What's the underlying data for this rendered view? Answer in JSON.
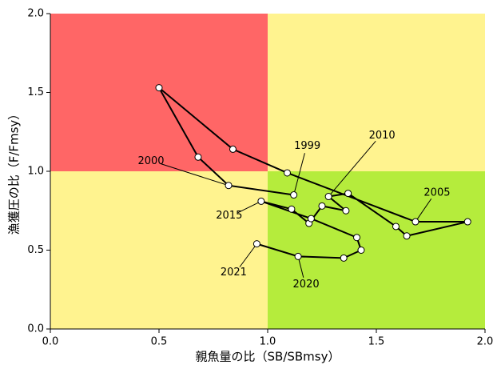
{
  "chart_data": {
    "type": "line",
    "xlabel": "親魚量の比（SB/SBmsy）",
    "ylabel": "漁獲圧の比（F/Fmsy）",
    "x": [
      1.12,
      0.82,
      0.68,
      0.5,
      0.84,
      1.09,
      1.68,
      1.92,
      1.64,
      1.59,
      1.37,
      1.28,
      1.36,
      1.25,
      1.19,
      1.11,
      0.97,
      1.2,
      1.41,
      1.43,
      1.35,
      1.14,
      0.95
    ],
    "values": [
      0.85,
      0.91,
      1.09,
      1.53,
      1.14,
      0.99,
      0.68,
      0.68,
      0.59,
      0.65,
      0.86,
      0.84,
      0.75,
      0.78,
      0.67,
      0.76,
      0.81,
      0.7,
      0.58,
      0.5,
      0.45,
      0.46,
      0.54
    ],
    "point_labels": [
      "1999",
      "2000",
      null,
      null,
      null,
      null,
      "2005",
      null,
      null,
      null,
      null,
      "2010",
      null,
      null,
      null,
      null,
      "2015",
      null,
      null,
      null,
      null,
      "2020",
      "2021"
    ],
    "color": "#000000",
    "reference": {
      "x": 1,
      "y": 1
    },
    "zone_colors": {
      "overfished_overfishing": "#ff6666",
      "caution": "#fff38f",
      "healthy": "#b5ec3c"
    },
    "xlim": [
      0,
      2
    ],
    "ylim": [
      0,
      2
    ],
    "xticks": [
      {
        "value": 0,
        "label": "0.0"
      },
      0.5,
      {
        "value": 1,
        "label": "1.0"
      },
      1.5,
      {
        "value": 2,
        "label": "2.0"
      }
    ],
    "yticks": [
      {
        "value": 0,
        "label": "0.0"
      },
      0.5,
      {
        "value": 1,
        "label": "1.0"
      },
      1.5,
      {
        "value": 2,
        "label": "2.0"
      }
    ]
  }
}
